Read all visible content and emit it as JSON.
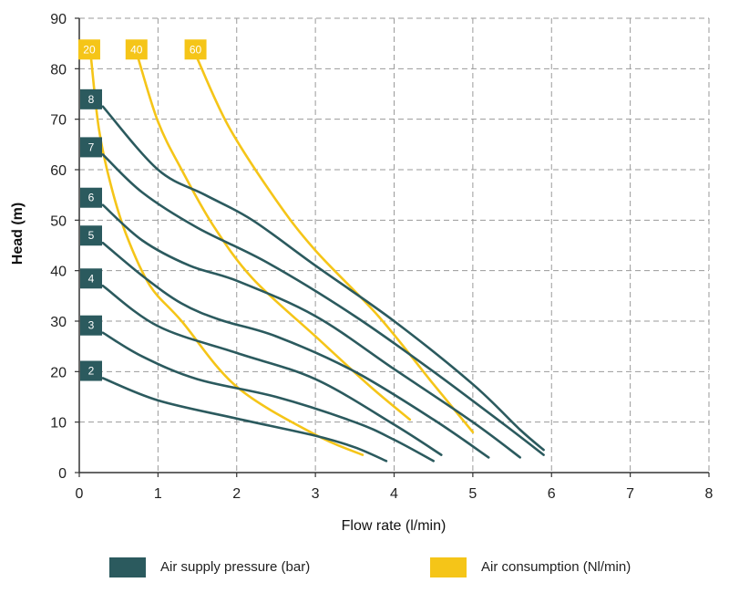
{
  "chart_data": {
    "type": "line",
    "xlabel": "Flow rate (l/min)",
    "ylabel": "Head (m)",
    "xlim": [
      0,
      8
    ],
    "ylim": [
      0,
      90
    ],
    "xticks": [
      "0",
      "1",
      "2",
      "3",
      "4",
      "5",
      "6",
      "7",
      "8"
    ],
    "yticks": [
      "0",
      "10",
      "20",
      "30",
      "40",
      "50",
      "60",
      "70",
      "80",
      "90"
    ],
    "grid": true,
    "legend": {
      "placement": "bottom",
      "entries": [
        {
          "label": "Air supply pressure (bar)",
          "color": "#2b5a5e"
        },
        {
          "label": "Air consumption (Nl/min)",
          "color": "#f5c518"
        }
      ]
    },
    "pressure_color": "#2b5a5e",
    "consumption_color": "#f5c518",
    "pressure_series": [
      {
        "name": "2",
        "points": [
          [
            0.3,
            18.7
          ],
          [
            1.0,
            14.3
          ],
          [
            2.0,
            10.7
          ],
          [
            3.0,
            7.3
          ],
          [
            3.5,
            5.0
          ],
          [
            3.9,
            2.3
          ]
        ]
      },
      {
        "name": "3",
        "points": [
          [
            0.3,
            27.7
          ],
          [
            0.8,
            23.0
          ],
          [
            1.5,
            18.5
          ],
          [
            2.5,
            15.0
          ],
          [
            3.5,
            10.0
          ],
          [
            4.0,
            6.5
          ],
          [
            4.5,
            2.3
          ]
        ]
      },
      {
        "name": "4",
        "points": [
          [
            0.3,
            37.0
          ],
          [
            1.0,
            29.0
          ],
          [
            2.0,
            23.7
          ],
          [
            3.0,
            18.5
          ],
          [
            4.0,
            9.5
          ],
          [
            4.6,
            3.5
          ]
        ]
      },
      {
        "name": "5",
        "points": [
          [
            0.3,
            45.5
          ],
          [
            0.8,
            39.0
          ],
          [
            1.3,
            33.5
          ],
          [
            1.8,
            30.2
          ],
          [
            2.5,
            27.0
          ],
          [
            3.5,
            20.0
          ],
          [
            4.5,
            10.5
          ],
          [
            5.2,
            3.0
          ]
        ]
      },
      {
        "name": "6",
        "points": [
          [
            0.3,
            53.0
          ],
          [
            0.8,
            46.0
          ],
          [
            1.4,
            41.0
          ],
          [
            2.0,
            38.0
          ],
          [
            3.0,
            31.0
          ],
          [
            4.0,
            20.5
          ],
          [
            5.0,
            10.0
          ],
          [
            5.6,
            3.0
          ]
        ]
      },
      {
        "name": "7",
        "points": [
          [
            0.3,
            63.0
          ],
          [
            0.8,
            55.5
          ],
          [
            1.5,
            48.5
          ],
          [
            2.4,
            41.5
          ],
          [
            3.5,
            31.0
          ],
          [
            4.5,
            20.0
          ],
          [
            5.4,
            9.5
          ],
          [
            5.9,
            3.5
          ]
        ]
      },
      {
        "name": "8",
        "points": [
          [
            0.3,
            72.5
          ],
          [
            1.0,
            60.0
          ],
          [
            1.6,
            55.0
          ],
          [
            2.2,
            50.0
          ],
          [
            3.0,
            41.0
          ],
          [
            4.0,
            30.0
          ],
          [
            5.0,
            17.5
          ],
          [
            5.6,
            8.5
          ],
          [
            5.9,
            4.5
          ]
        ]
      }
    ],
    "consumption_series": [
      {
        "name": "20",
        "points": [
          [
            0.15,
            82.0
          ],
          [
            0.25,
            68.0
          ],
          [
            0.4,
            57.0
          ],
          [
            0.6,
            47.0
          ],
          [
            0.9,
            37.0
          ],
          [
            1.3,
            30.0
          ],
          [
            2.0,
            17.0
          ],
          [
            3.0,
            7.5
          ],
          [
            3.6,
            3.5
          ]
        ]
      },
      {
        "name": "40",
        "points": [
          [
            0.75,
            82.0
          ],
          [
            1.0,
            69.5
          ],
          [
            1.3,
            60.0
          ],
          [
            1.7,
            49.0
          ],
          [
            2.2,
            38.5
          ],
          [
            3.0,
            27.0
          ],
          [
            3.7,
            17.0
          ],
          [
            4.2,
            10.5
          ]
        ]
      },
      {
        "name": "60",
        "points": [
          [
            1.5,
            82.0
          ],
          [
            1.9,
            68.5
          ],
          [
            2.5,
            54.0
          ],
          [
            3.0,
            44.0
          ],
          [
            3.8,
            31.0
          ],
          [
            4.5,
            17.5
          ],
          [
            5.0,
            8.0
          ]
        ]
      }
    ]
  }
}
